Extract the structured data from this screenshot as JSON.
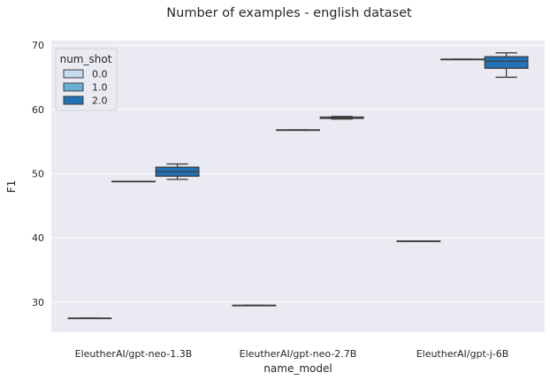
{
  "chart_data": {
    "type": "box",
    "title": "Number of examples - english dataset",
    "xlabel": "name_model",
    "ylabel": "F1",
    "categories": [
      "EleutherAI/gpt-neo-1.3B",
      "EleutherAI/gpt-neo-2.7B",
      "EleutherAI/gpt-j-6B"
    ],
    "ylim": [
      25.3,
      70.7
    ],
    "yticks": [
      30,
      40,
      50,
      60,
      70
    ],
    "grid": true,
    "legend": {
      "title": "num_shot",
      "placement": "top-left",
      "entries": [
        "0.0",
        "1.0",
        "2.0"
      ]
    },
    "series": [
      {
        "name": "0.0",
        "color": "#c6dbef",
        "boxes": [
          {
            "min": 27.5,
            "q1": 27.5,
            "median": 27.5,
            "q3": 27.5,
            "max": 27.5
          },
          {
            "min": 29.5,
            "q1": 29.5,
            "median": 29.5,
            "q3": 29.5,
            "max": 29.5
          },
          {
            "min": 39.5,
            "q1": 39.5,
            "median": 39.5,
            "q3": 39.5,
            "max": 39.5
          }
        ]
      },
      {
        "name": "1.0",
        "color": "#6baed6",
        "boxes": [
          {
            "min": 48.8,
            "q1": 48.8,
            "median": 48.8,
            "q3": 48.8,
            "max": 48.8
          },
          {
            "min": 56.8,
            "q1": 56.8,
            "median": 56.8,
            "q3": 56.8,
            "max": 56.8
          },
          {
            "min": 67.8,
            "q1": 67.8,
            "median": 67.8,
            "q3": 67.8,
            "max": 67.8
          }
        ]
      },
      {
        "name": "2.0",
        "color": "#2171b5",
        "boxes": [
          {
            "min": 49.1,
            "q1": 49.6,
            "median": 50.3,
            "q3": 51.0,
            "max": 51.5
          },
          {
            "min": 58.5,
            "q1": 58.6,
            "median": 58.7,
            "q3": 58.8,
            "max": 58.9
          },
          {
            "min": 65.0,
            "q1": 66.4,
            "median": 67.5,
            "q3": 68.2,
            "max": 68.8
          }
        ]
      }
    ]
  }
}
